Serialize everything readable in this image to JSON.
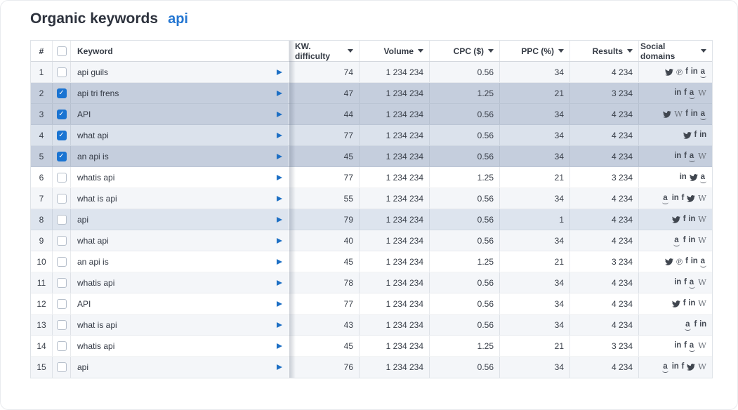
{
  "header": {
    "title": "Organic keywords",
    "query": "api"
  },
  "colors": {
    "accent_blue": "#1a74d2",
    "link_blue": "#2577d2",
    "row_alt": "#f4f6f9",
    "row_selected_dark": "#c5cedd",
    "row_selected_light": "#dbe2ec",
    "row_highlight": "#dde4ee"
  },
  "table": {
    "columns": {
      "hash": "#",
      "keyword": "Keyword",
      "difficulty": "KW. difficulty",
      "volume": "Volume",
      "cpc": "CPC ($)",
      "ppc": "PPC (%)",
      "results": "Results",
      "social": "Social domains"
    },
    "rows": [
      {
        "num": "1",
        "keyword": "api guils",
        "checked": false,
        "shade": "alt",
        "difficulty": "74",
        "volume": "1 234 234",
        "cpc": "0.56",
        "ppc": "34",
        "results": "4 234",
        "social": [
          "twitter",
          "pinterest",
          "facebook",
          "linkedin",
          "amazon"
        ]
      },
      {
        "num": "2",
        "keyword": "api tri frens",
        "checked": true,
        "shade": "sel-dark",
        "difficulty": "47",
        "volume": "1 234 234",
        "cpc": "1.25",
        "ppc": "21",
        "results": "3 234",
        "social": [
          "linkedin",
          "facebook",
          "amazon",
          "wikipedia"
        ]
      },
      {
        "num": "3",
        "keyword": "API",
        "checked": true,
        "shade": "sel-dark",
        "difficulty": "44",
        "volume": "1 234 234",
        "cpc": "0.56",
        "ppc": "34",
        "results": "4 234",
        "social": [
          "twitter",
          "wikipedia",
          "facebook",
          "linkedin",
          "amazon"
        ]
      },
      {
        "num": "4",
        "keyword": "what api",
        "checked": true,
        "shade": "sel-light",
        "difficulty": "77",
        "volume": "1 234 234",
        "cpc": "0.56",
        "ppc": "34",
        "results": "4 234",
        "social": [
          "twitter",
          "facebook",
          "linkedin"
        ]
      },
      {
        "num": "5",
        "keyword": "an api is",
        "checked": true,
        "shade": "sel-dark",
        "difficulty": "45",
        "volume": "1 234 234",
        "cpc": "0.56",
        "ppc": "34",
        "results": "4 234",
        "social": [
          "linkedin",
          "facebook",
          "amazon",
          "wikipedia"
        ]
      },
      {
        "num": "6",
        "keyword": "whatis api",
        "checked": false,
        "shade": "white",
        "difficulty": "77",
        "volume": "1 234 234",
        "cpc": "1.25",
        "ppc": "21",
        "results": "3 234",
        "social": [
          "linkedin",
          "twitter",
          "amazon"
        ]
      },
      {
        "num": "7",
        "keyword": "what is api",
        "checked": false,
        "shade": "alt",
        "difficulty": "55",
        "volume": "1 234 234",
        "cpc": "0.56",
        "ppc": "34",
        "results": "4 234",
        "social": [
          "amazon",
          "linkedin",
          "facebook",
          "twitter",
          "wikipedia"
        ]
      },
      {
        "num": "8",
        "keyword": "api",
        "checked": false,
        "shade": "hl",
        "difficulty": "79",
        "volume": "1 234 234",
        "cpc": "0.56",
        "ppc": "1",
        "results": "4 234",
        "social": [
          "twitter",
          "facebook",
          "linkedin",
          "wikipedia"
        ]
      },
      {
        "num": "9",
        "keyword": "what api",
        "checked": false,
        "shade": "alt",
        "difficulty": "40",
        "volume": "1 234 234",
        "cpc": "0.56",
        "ppc": "34",
        "results": "4 234",
        "social": [
          "amazon",
          "facebook",
          "linkedin",
          "wikipedia"
        ]
      },
      {
        "num": "10",
        "keyword": "an api is",
        "checked": false,
        "shade": "white",
        "difficulty": "45",
        "volume": "1 234 234",
        "cpc": "1.25",
        "ppc": "21",
        "results": "3 234",
        "social": [
          "twitter",
          "pinterest",
          "facebook",
          "linkedin",
          "amazon"
        ]
      },
      {
        "num": "11",
        "keyword": "whatis api",
        "checked": false,
        "shade": "alt",
        "difficulty": "78",
        "volume": "1 234 234",
        "cpc": "0.56",
        "ppc": "34",
        "results": "4 234",
        "social": [
          "linkedin",
          "facebook",
          "amazon",
          "wikipedia"
        ]
      },
      {
        "num": "12",
        "keyword": "API",
        "checked": false,
        "shade": "white",
        "difficulty": "77",
        "volume": "1 234 234",
        "cpc": "0.56",
        "ppc": "34",
        "results": "4 234",
        "social": [
          "twitter",
          "facebook",
          "linkedin",
          "wikipedia"
        ]
      },
      {
        "num": "13",
        "keyword": "what is api",
        "checked": false,
        "shade": "alt",
        "difficulty": "43",
        "volume": "1 234 234",
        "cpc": "0.56",
        "ppc": "34",
        "results": "4 234",
        "social": [
          "amazon",
          "facebook",
          "linkedin"
        ]
      },
      {
        "num": "14",
        "keyword": "whatis api",
        "checked": false,
        "shade": "white",
        "difficulty": "45",
        "volume": "1 234 234",
        "cpc": "1.25",
        "ppc": "21",
        "results": "3 234",
        "social": [
          "linkedin",
          "facebook",
          "amazon",
          "wikipedia"
        ]
      },
      {
        "num": "15",
        "keyword": "api",
        "checked": false,
        "shade": "alt",
        "difficulty": "76",
        "volume": "1 234 234",
        "cpc": "0.56",
        "ppc": "34",
        "results": "4 234",
        "social": [
          "amazon",
          "linkedin",
          "facebook",
          "twitter",
          "wikipedia"
        ]
      }
    ]
  }
}
